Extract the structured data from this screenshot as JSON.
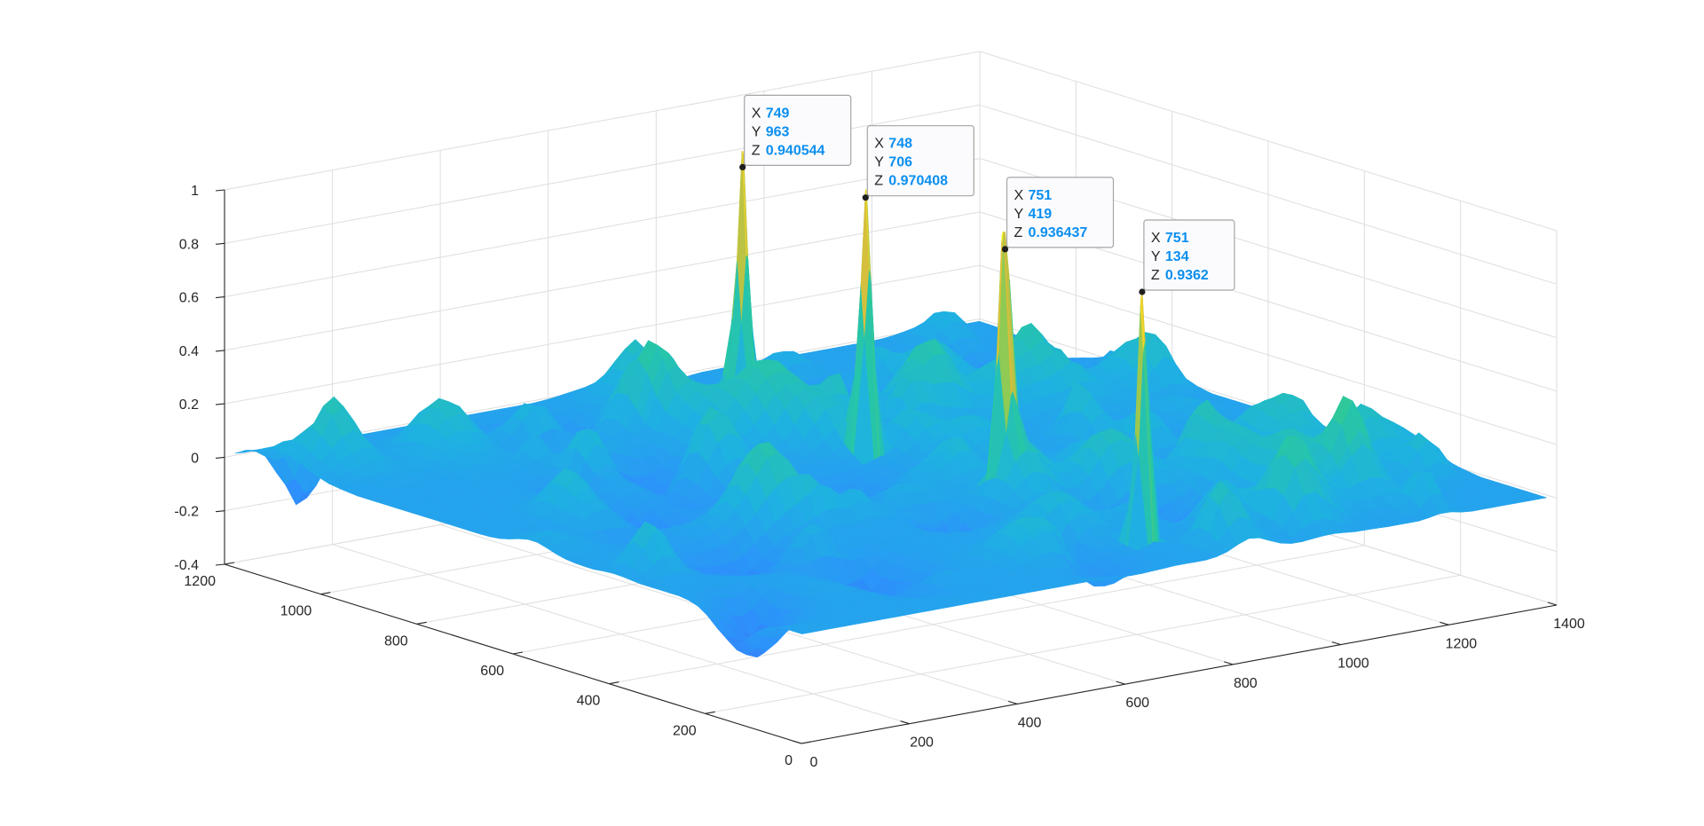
{
  "chart_data": {
    "type": "surface",
    "title": "",
    "xlabel": "",
    "ylabel": "",
    "zlabel": "",
    "xlim": [
      0,
      1400
    ],
    "ylim": [
      0,
      1200
    ],
    "zlim": [
      -0.4,
      1
    ],
    "x_ticks": [
      "0",
      "200",
      "400",
      "600",
      "800",
      "1000",
      "1200",
      "1400"
    ],
    "y_ticks": [
      "0",
      "200",
      "400",
      "600",
      "800",
      "1000",
      "1200"
    ],
    "z_ticks": [
      "-0.4",
      "-0.2",
      "0",
      "0.2",
      "0.4",
      "0.6",
      "0.8",
      "1"
    ],
    "grid": true,
    "colormap": "parula",
    "surface_base_level": 0,
    "surface_noise_range": [
      -0.4,
      0.25
    ],
    "peaks": [
      {
        "x": 749,
        "y": 963,
        "z": 0.940544
      },
      {
        "x": 748,
        "y": 706,
        "z": 0.970408
      },
      {
        "x": 751,
        "y": 419,
        "z": 0.936437
      },
      {
        "x": 751,
        "y": 134,
        "z": 0.9362
      }
    ],
    "datatips": [
      {
        "x_key": "X",
        "x_value": "749",
        "y_key": "Y",
        "y_value": "963",
        "z_key": "Z",
        "z_value": "0.940544"
      },
      {
        "x_key": "X",
        "x_value": "748",
        "y_key": "Y",
        "y_value": "706",
        "z_key": "Z",
        "z_value": "0.970408"
      },
      {
        "x_key": "X",
        "x_value": "751",
        "y_key": "Y",
        "y_value": "419",
        "z_key": "Z",
        "z_value": "0.936437"
      },
      {
        "x_key": "X",
        "x_value": "751",
        "y_key": "Y",
        "y_value": "134",
        "z_key": "Z",
        "z_value": "0.9362"
      }
    ]
  }
}
